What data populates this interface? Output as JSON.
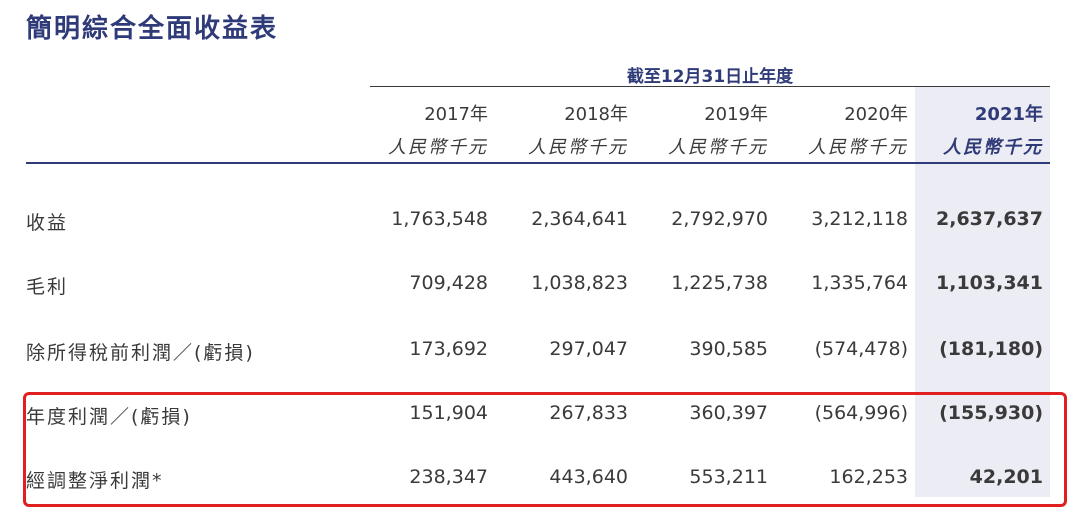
{
  "title": "簡明綜合全面收益表",
  "period": "截至12月31日止年度",
  "years": [
    "2017年",
    "2018年",
    "2019年",
    "2020年",
    "2021年"
  ],
  "currency": [
    "人民幣千元",
    "人民幣千元",
    "人民幣千元",
    "人民幣千元",
    "人民幣千元"
  ],
  "rows": [
    {
      "label": "收益",
      "values": [
        "1,763,548",
        "2,364,641",
        "2,792,970",
        "3,212,118",
        "2,637,637"
      ]
    },
    {
      "label": "毛利",
      "values": [
        "709,428",
        "1,038,823",
        "1,225,738",
        "1,335,764",
        "1,103,341"
      ]
    },
    {
      "label": "除所得稅前利潤／(虧損)",
      "values": [
        "173,692",
        "297,047",
        "390,585",
        "(574,478)",
        "(181,180)"
      ]
    },
    {
      "label": "年度利潤／(虧損)",
      "values": [
        "151,904",
        "267,833",
        "360,397",
        "(564,996)",
        "(155,930)"
      ]
    },
    {
      "label": "經調整淨利潤*",
      "values": [
        "238,347",
        "443,640",
        "553,211",
        "162,253",
        "42,201"
      ]
    }
  ],
  "colors": {
    "accent": "#2f3a78",
    "highlight_bg": "#ececf4",
    "box_border": "#e02020"
  }
}
